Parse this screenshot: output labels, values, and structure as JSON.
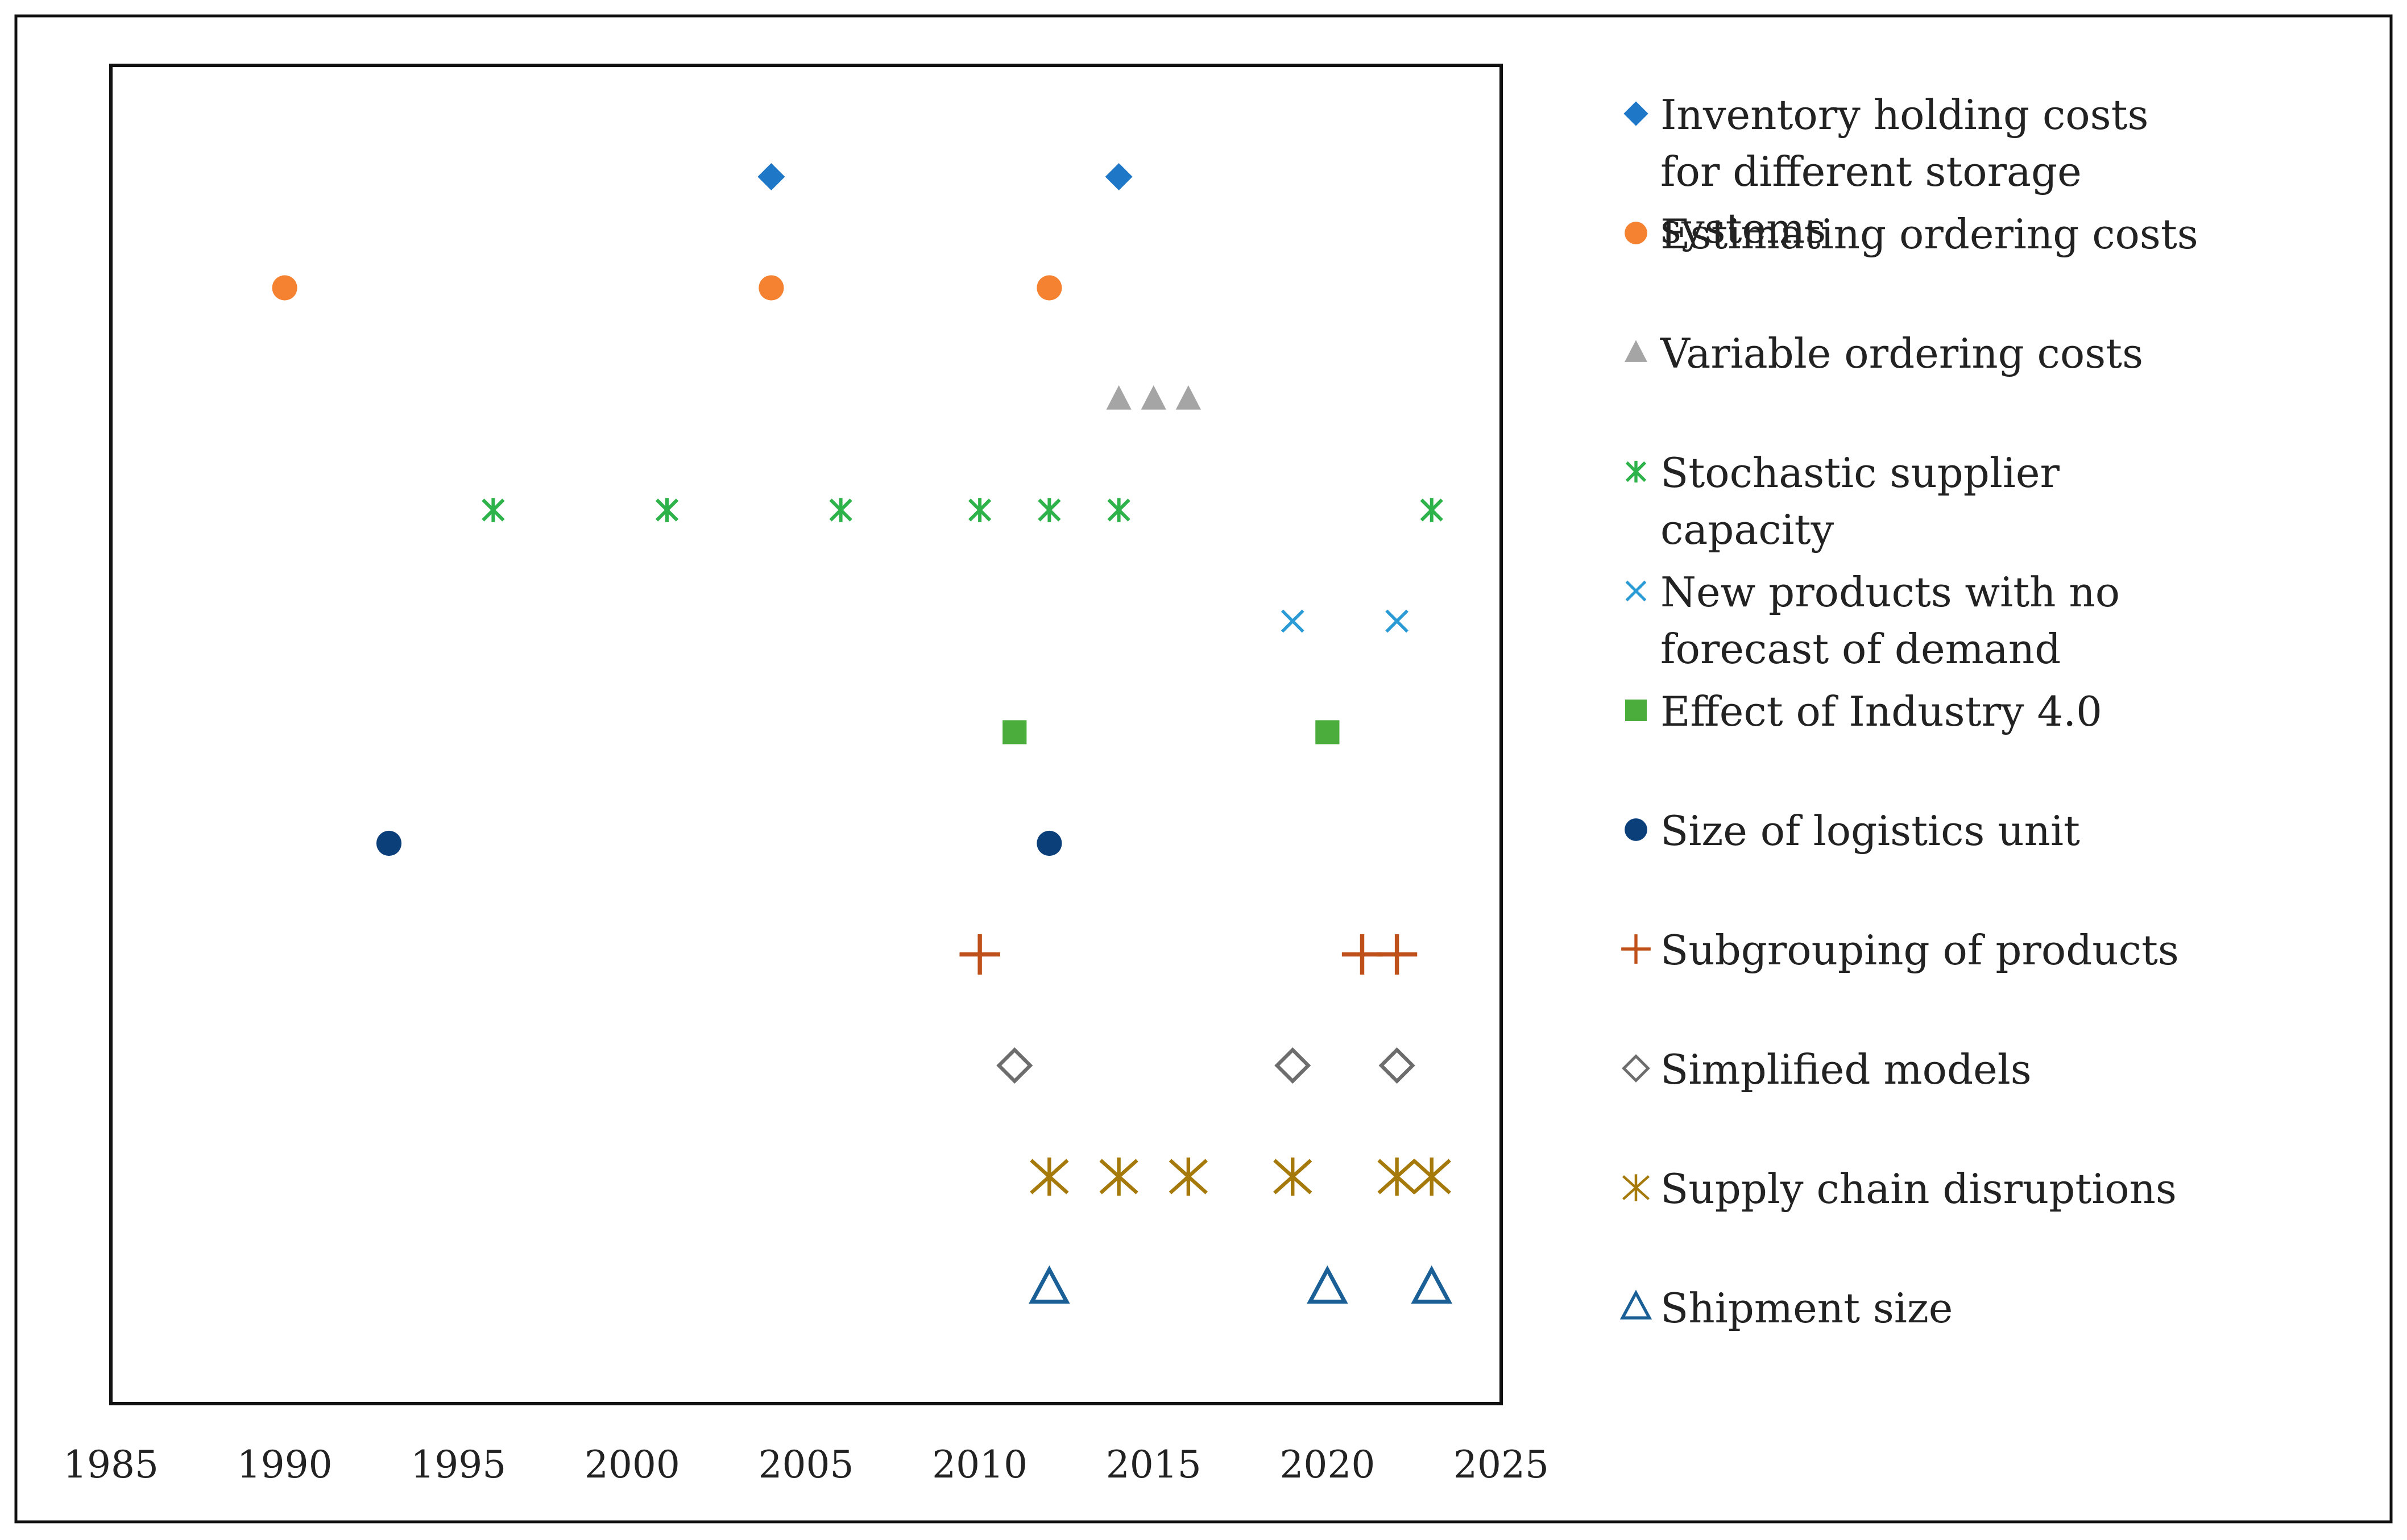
{
  "chart_data": {
    "type": "scatter",
    "title": "",
    "xlabel": "",
    "ylabel": "",
    "xlim": [
      1985,
      2025
    ],
    "xticks": [
      1985,
      1990,
      1995,
      2000,
      2005,
      2010,
      2015,
      2020,
      2025
    ],
    "grid": false,
    "legend_position": "right",
    "series": [
      {
        "name": "Inventory holding costs for different storage systems",
        "marker": "diamond-filled",
        "color": "#1f77c8",
        "x": [
          2004,
          2014
        ]
      },
      {
        "name": "Estimating ordering costs",
        "marker": "circle-filled",
        "color": "#f58231",
        "x": [
          1990,
          2004,
          2012
        ]
      },
      {
        "name": "Variable ordering costs",
        "marker": "triangle-filled",
        "color": "#a5a5a5",
        "x": [
          2014,
          2015,
          2016
        ]
      },
      {
        "name": "Stochastic supplier capacity",
        "marker": "star-x",
        "color": "#2db34a",
        "x": [
          1996,
          2001,
          2006,
          2010,
          2012,
          2014,
          2023
        ]
      },
      {
        "name": "New products with no forecast of demand",
        "marker": "x",
        "color": "#2b9bd6",
        "x": [
          2019,
          2022
        ]
      },
      {
        "name": "Effect of Industry 4.0",
        "marker": "square-filled",
        "color": "#4bae3c",
        "x": [
          2011,
          2020
        ]
      },
      {
        "name": "Size of logistics unit",
        "marker": "circle-filled",
        "color": "#0b3f7a",
        "x": [
          1993,
          2012
        ]
      },
      {
        "name": "Subgrouping of products",
        "marker": "plus",
        "color": "#c0501a",
        "x": [
          2010,
          2021,
          2022
        ]
      },
      {
        "name": "Simplified models",
        "marker": "diamond-open",
        "color": "#6d6d6d",
        "x": [
          2011,
          2019,
          2022
        ]
      },
      {
        "name": "Supply chain disruptions",
        "marker": "asterisk",
        "color": "#a57a0b",
        "x": [
          2012,
          2014,
          2016,
          2019,
          2022,
          2023
        ]
      },
      {
        "name": "Shipment size",
        "marker": "triangle-open",
        "color": "#1a5f96",
        "x": [
          2012,
          2020,
          2023
        ]
      }
    ]
  }
}
